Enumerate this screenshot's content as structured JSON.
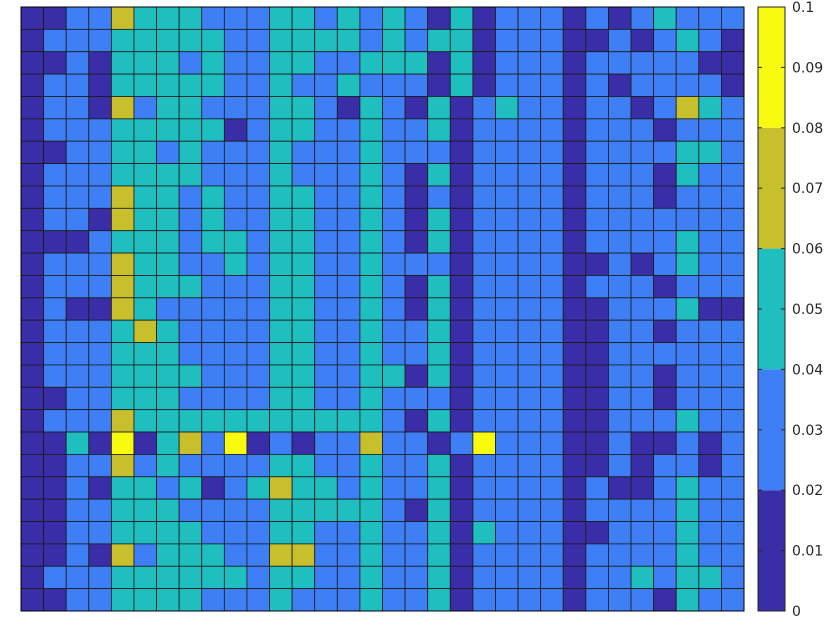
{
  "chart_data": {
    "type": "heatmap",
    "title": "",
    "xlabel": "",
    "ylabel": "",
    "n_rows": 27,
    "n_cols": 32,
    "colorbar": {
      "min": 0,
      "max": 0.1,
      "ticks": [
        "0",
        "0.01",
        "0.02",
        "0.03",
        "0.04",
        "0.05",
        "0.06",
        "0.07",
        "0.08",
        "0.09",
        "0.1"
      ],
      "bins": [
        {
          "range": [
            0.0,
            0.02
          ],
          "color": "#3a2ea8"
        },
        {
          "range": [
            0.02,
            0.04
          ],
          "color": "#3e7ff5"
        },
        {
          "range": [
            0.04,
            0.06
          ],
          "color": "#1fbfbf"
        },
        {
          "range": [
            0.06,
            0.08
          ],
          "color": "#c8bf2c"
        },
        {
          "range": [
            0.08,
            0.1
          ],
          "color": "#f8fa10"
        }
      ]
    },
    "levels": [
      [
        0,
        0,
        1,
        1,
        3,
        2,
        2,
        2,
        1,
        1,
        1,
        2,
        2,
        1,
        2,
        1,
        2,
        1,
        0,
        2,
        0,
        1,
        1,
        1,
        0,
        1,
        0,
        1,
        2,
        1,
        1,
        1
      ],
      [
        0,
        1,
        1,
        1,
        2,
        2,
        2,
        2,
        2,
        1,
        1,
        2,
        2,
        2,
        2,
        1,
        2,
        1,
        2,
        2,
        0,
        1,
        1,
        1,
        0,
        0,
        1,
        0,
        1,
        2,
        1,
        0
      ],
      [
        0,
        0,
        1,
        0,
        2,
        2,
        2,
        1,
        2,
        1,
        1,
        2,
        2,
        1,
        1,
        2,
        2,
        2,
        0,
        2,
        0,
        1,
        1,
        1,
        0,
        1,
        1,
        1,
        1,
        1,
        0,
        0
      ],
      [
        0,
        1,
        1,
        0,
        2,
        2,
        2,
        2,
        2,
        1,
        1,
        2,
        1,
        1,
        2,
        1,
        1,
        1,
        0,
        2,
        0,
        1,
        1,
        1,
        0,
        1,
        0,
        1,
        1,
        1,
        1,
        0
      ],
      [
        0,
        1,
        1,
        0,
        3,
        1,
        2,
        2,
        1,
        1,
        1,
        2,
        2,
        1,
        0,
        2,
        1,
        0,
        2,
        0,
        1,
        2,
        1,
        1,
        0,
        1,
        1,
        0,
        1,
        3,
        2,
        1
      ],
      [
        0,
        1,
        1,
        1,
        2,
        2,
        2,
        2,
        2,
        0,
        1,
        2,
        2,
        1,
        1,
        2,
        1,
        1,
        2,
        0,
        1,
        1,
        1,
        1,
        0,
        1,
        1,
        1,
        0,
        1,
        1,
        1
      ],
      [
        0,
        0,
        1,
        1,
        2,
        2,
        1,
        2,
        1,
        1,
        1,
        2,
        1,
        1,
        1,
        2,
        1,
        1,
        1,
        0,
        1,
        1,
        1,
        1,
        0,
        1,
        1,
        1,
        1,
        2,
        2,
        1
      ],
      [
        0,
        1,
        1,
        1,
        2,
        2,
        2,
        2,
        1,
        1,
        1,
        2,
        1,
        1,
        1,
        2,
        1,
        0,
        2,
        0,
        1,
        1,
        1,
        1,
        0,
        1,
        1,
        1,
        0,
        2,
        1,
        1
      ],
      [
        0,
        1,
        1,
        1,
        3,
        2,
        2,
        1,
        2,
        1,
        1,
        2,
        2,
        1,
        1,
        2,
        1,
        0,
        1,
        0,
        1,
        1,
        1,
        1,
        0,
        1,
        1,
        1,
        0,
        1,
        1,
        1
      ],
      [
        0,
        1,
        1,
        0,
        3,
        2,
        2,
        1,
        2,
        1,
        1,
        2,
        2,
        1,
        1,
        2,
        1,
        0,
        2,
        0,
        1,
        1,
        1,
        1,
        0,
        1,
        1,
        1,
        1,
        1,
        1,
        1
      ],
      [
        0,
        0,
        0,
        1,
        2,
        2,
        2,
        1,
        2,
        2,
        1,
        2,
        2,
        1,
        1,
        2,
        1,
        0,
        2,
        0,
        1,
        1,
        1,
        1,
        0,
        1,
        1,
        1,
        1,
        2,
        1,
        1
      ],
      [
        0,
        1,
        1,
        1,
        3,
        2,
        2,
        1,
        1,
        2,
        1,
        2,
        2,
        1,
        1,
        2,
        1,
        1,
        1,
        0,
        1,
        1,
        1,
        1,
        0,
        0,
        1,
        0,
        1,
        2,
        1,
        1
      ],
      [
        0,
        1,
        1,
        1,
        3,
        2,
        2,
        2,
        1,
        1,
        1,
        2,
        2,
        1,
        1,
        2,
        1,
        0,
        2,
        0,
        1,
        1,
        1,
        1,
        0,
        1,
        1,
        1,
        0,
        1,
        1,
        1
      ],
      [
        0,
        1,
        0,
        0,
        3,
        2,
        1,
        1,
        1,
        1,
        1,
        2,
        2,
        1,
        1,
        2,
        1,
        0,
        2,
        0,
        1,
        1,
        1,
        1,
        0,
        0,
        1,
        1,
        1,
        2,
        0,
        0
      ],
      [
        0,
        1,
        1,
        1,
        2,
        3,
        2,
        1,
        1,
        1,
        1,
        2,
        2,
        1,
        1,
        2,
        1,
        1,
        2,
        0,
        1,
        1,
        1,
        1,
        0,
        0,
        1,
        1,
        0,
        1,
        1,
        1
      ],
      [
        0,
        1,
        1,
        1,
        2,
        2,
        2,
        1,
        1,
        1,
        1,
        2,
        2,
        1,
        1,
        2,
        1,
        1,
        2,
        0,
        1,
        1,
        1,
        1,
        0,
        0,
        1,
        1,
        1,
        1,
        1,
        1
      ],
      [
        0,
        1,
        1,
        1,
        2,
        2,
        2,
        2,
        1,
        1,
        1,
        2,
        2,
        1,
        1,
        2,
        2,
        0,
        2,
        0,
        1,
        1,
        1,
        1,
        0,
        0,
        1,
        1,
        0,
        1,
        1,
        1
      ],
      [
        0,
        0,
        1,
        1,
        2,
        2,
        2,
        1,
        1,
        1,
        1,
        2,
        2,
        1,
        1,
        2,
        1,
        1,
        1,
        0,
        1,
        1,
        1,
        1,
        0,
        0,
        1,
        1,
        0,
        1,
        1,
        1
      ],
      [
        0,
        1,
        1,
        1,
        3,
        2,
        2,
        2,
        2,
        2,
        2,
        2,
        2,
        2,
        2,
        2,
        1,
        0,
        2,
        0,
        1,
        1,
        1,
        1,
        0,
        0,
        1,
        1,
        1,
        2,
        1,
        1
      ],
      [
        0,
        0,
        2,
        0,
        4,
        0,
        2,
        3,
        1,
        4,
        0,
        1,
        0,
        1,
        1,
        3,
        1,
        1,
        0,
        1,
        4,
        1,
        1,
        1,
        0,
        0,
        1,
        0,
        0,
        1,
        0,
        1
      ],
      [
        0,
        0,
        1,
        1,
        3,
        1,
        2,
        1,
        1,
        1,
        1,
        2,
        2,
        1,
        1,
        2,
        1,
        1,
        2,
        0,
        1,
        1,
        1,
        1,
        0,
        0,
        1,
        0,
        1,
        1,
        0,
        1
      ],
      [
        0,
        0,
        1,
        0,
        2,
        2,
        1,
        2,
        0,
        1,
        2,
        3,
        2,
        2,
        1,
        2,
        1,
        1,
        2,
        0,
        1,
        1,
        1,
        1,
        0,
        1,
        0,
        0,
        1,
        2,
        1,
        1
      ],
      [
        0,
        0,
        1,
        1,
        2,
        2,
        2,
        1,
        1,
        1,
        1,
        2,
        2,
        2,
        2,
        2,
        1,
        0,
        2,
        0,
        1,
        1,
        1,
        1,
        0,
        1,
        1,
        1,
        1,
        2,
        1,
        1
      ],
      [
        0,
        0,
        1,
        1,
        2,
        2,
        2,
        2,
        1,
        1,
        1,
        2,
        2,
        1,
        1,
        2,
        1,
        1,
        2,
        0,
        2,
        1,
        1,
        1,
        0,
        0,
        1,
        1,
        1,
        2,
        1,
        1
      ],
      [
        0,
        0,
        1,
        0,
        3,
        1,
        2,
        2,
        2,
        1,
        1,
        3,
        3,
        1,
        1,
        2,
        1,
        1,
        2,
        0,
        1,
        1,
        1,
        1,
        0,
        1,
        1,
        1,
        1,
        2,
        1,
        1
      ],
      [
        0,
        1,
        1,
        1,
        2,
        2,
        2,
        2,
        2,
        2,
        1,
        2,
        2,
        1,
        1,
        2,
        1,
        1,
        2,
        0,
        1,
        1,
        1,
        1,
        0,
        1,
        1,
        2,
        1,
        2,
        2,
        1
      ],
      [
        0,
        0,
        1,
        1,
        2,
        2,
        2,
        2,
        1,
        1,
        1,
        2,
        1,
        1,
        1,
        2,
        1,
        1,
        2,
        0,
        1,
        1,
        1,
        1,
        0,
        1,
        1,
        1,
        0,
        2,
        1,
        1
      ]
    ]
  }
}
